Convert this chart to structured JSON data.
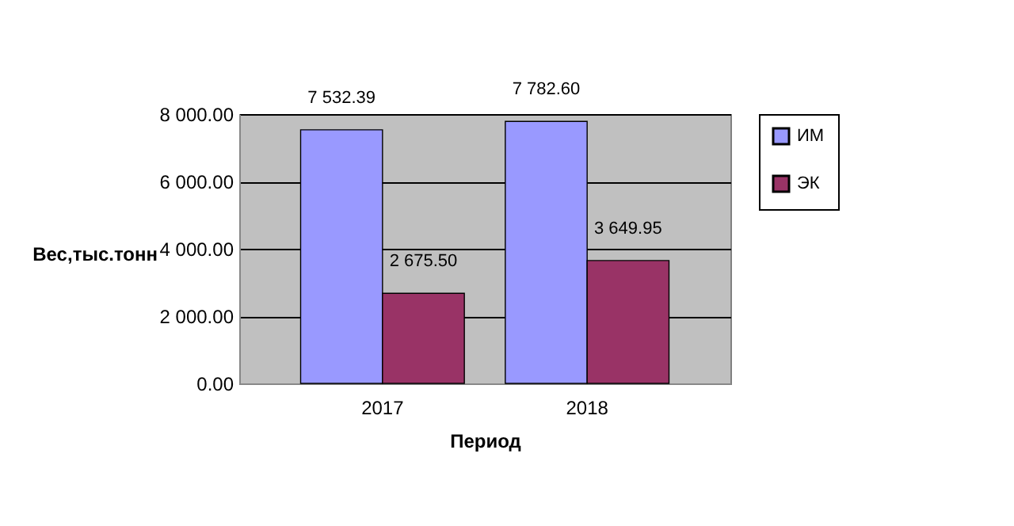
{
  "chart_data": {
    "type": "bar",
    "xlabel": "Период",
    "ylabel": "Вес,тыс.тонн",
    "categories": [
      "2017",
      "2018"
    ],
    "series": [
      {
        "name": "ИМ",
        "color": "#9999ff",
        "values": [
          7532.39,
          7782.6
        ],
        "value_labels": [
          "7 532.39",
          "7 782.60"
        ]
      },
      {
        "name": "ЭК",
        "color": "#993366",
        "values": [
          2675.5,
          3649.95
        ],
        "value_labels": [
          "2 675.50",
          "3 649.95"
        ]
      }
    ],
    "ylim": [
      0,
      8000
    ],
    "yticks": [
      {
        "value": 0,
        "label": "0.00"
      },
      {
        "value": 2000,
        "label": "2 000.00"
      },
      {
        "value": 4000,
        "label": "4 000.00"
      },
      {
        "value": 6000,
        "label": "6 000.00"
      },
      {
        "value": 8000,
        "label": "8 000.00"
      }
    ],
    "grid": "y",
    "legend": "right"
  }
}
